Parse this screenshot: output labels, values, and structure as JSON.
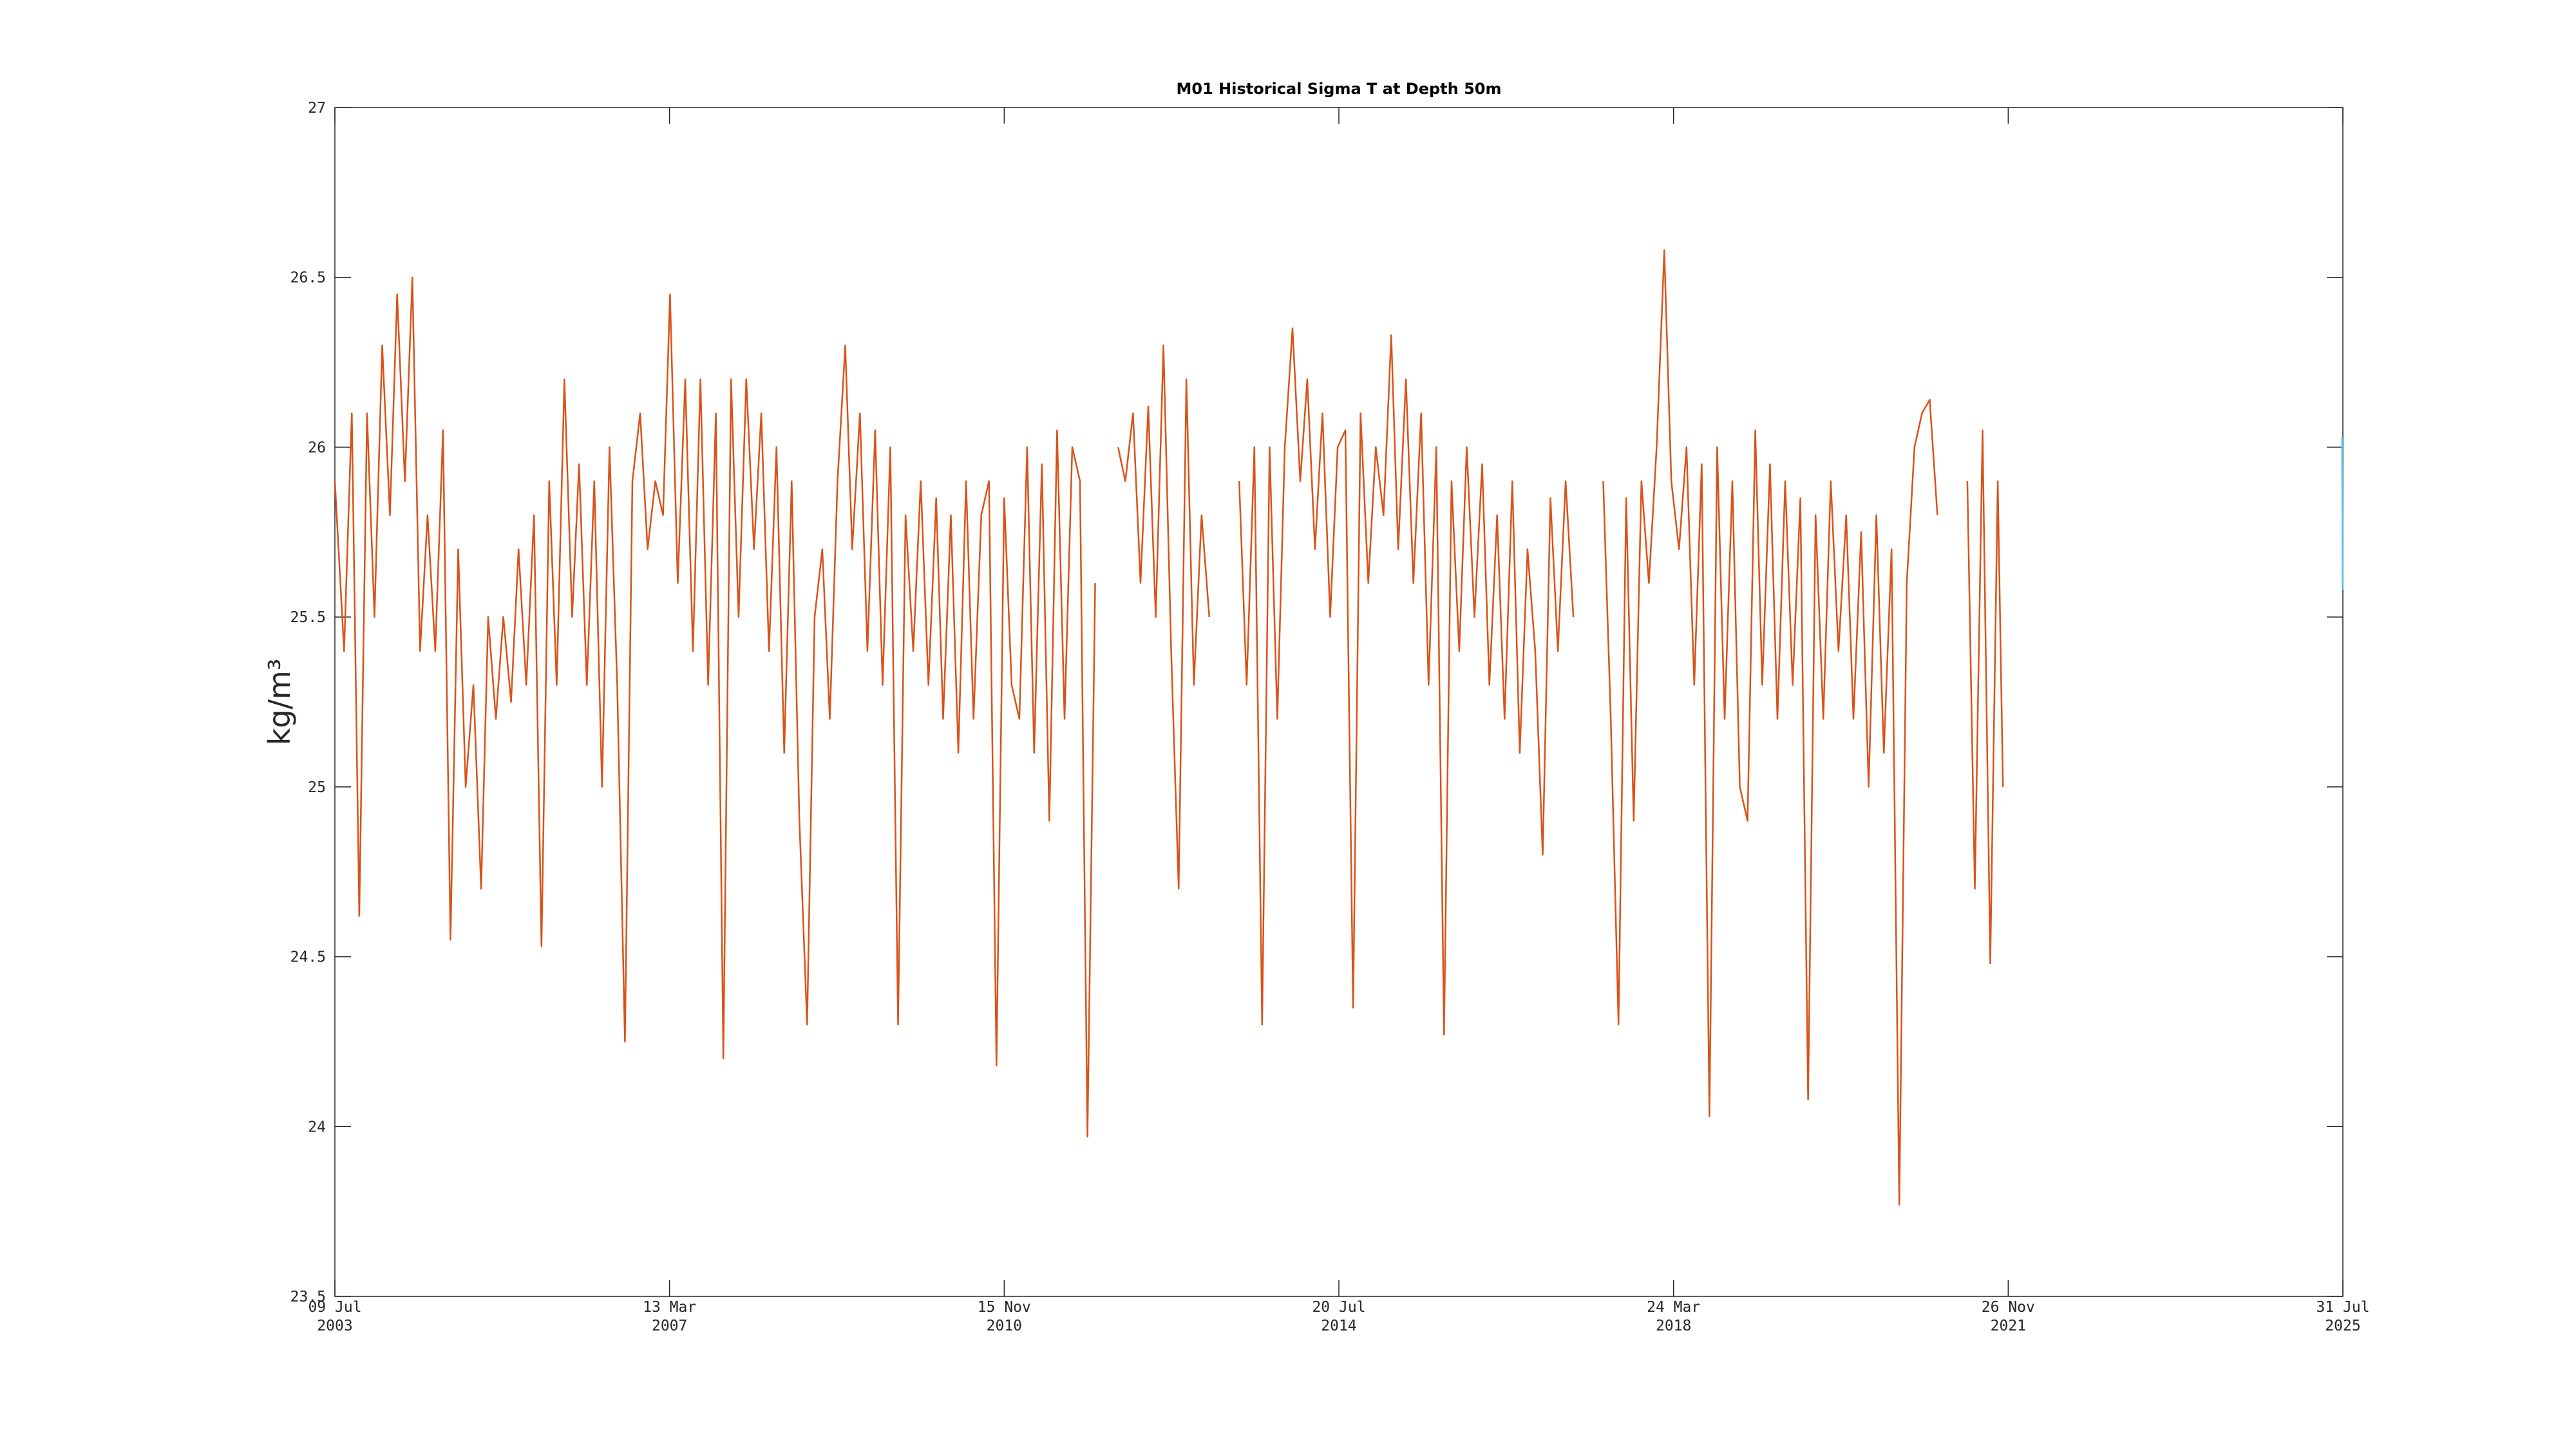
{
  "chart_data": {
    "type": "line",
    "title": "M01 Historical Sigma T at Depth 50m",
    "y_label": "kg/m³",
    "xlim": [
      "2003-07-09",
      "2025-07-31"
    ],
    "xticks": [
      {
        "value": "2003-07-09",
        "label": [
          "09 Jul",
          "2003"
        ]
      },
      {
        "value": "2007-03-13",
        "label": [
          "13 Mar",
          "2007"
        ]
      },
      {
        "value": "2010-11-15",
        "label": [
          "15 Nov",
          "2010"
        ]
      },
      {
        "value": "2014-07-20",
        "label": [
          "20 Jul",
          "2014"
        ]
      },
      {
        "value": "2018-03-24",
        "label": [
          "24 Mar",
          "2018"
        ]
      },
      {
        "value": "2021-11-26",
        "label": [
          "26 Nov",
          "2021"
        ]
      },
      {
        "value": "2025-07-31",
        "label": [
          "31 Jul",
          "2025"
        ]
      }
    ],
    "ylim": [
      23.5,
      27
    ],
    "yticks": [
      23.5,
      24,
      24.5,
      25,
      25.5,
      26,
      26.5,
      27
    ],
    "series": [
      {
        "color": "#d95319",
        "x": [
          "2003-07-09",
          "2003-08-15",
          "2003-09-15",
          "2003-10-15",
          "2003-11-15",
          "2003-12-15",
          "2004-01-15",
          "2004-02-15",
          "2004-03-15",
          "2004-04-15",
          "2004-05-15",
          "2004-06-15",
          "2004-07-15",
          "2004-08-15",
          "2004-09-15",
          "2004-10-15",
          "2004-11-15",
          "2004-12-15",
          "2005-01-15",
          "2005-02-15",
          "2005-03-15",
          "2005-04-15",
          "2005-05-15",
          "2005-06-15",
          "2005-07-15",
          "2005-08-15",
          "2005-09-15",
          "2005-10-15",
          "2005-11-15",
          "2005-12-15",
          "2006-01-15",
          "2006-02-15",
          "2006-03-15",
          "2006-04-15",
          "2006-05-15",
          "2006-06-15",
          "2006-07-15",
          "2006-08-15",
          "2006-09-15",
          "2006-10-15",
          "2006-11-15",
          "2006-12-15",
          "2007-01-15",
          "2007-02-15",
          "2007-03-15",
          "2007-04-15",
          "2007-05-15",
          "2007-06-15",
          "2007-07-15",
          "2007-08-15",
          "2007-09-15",
          "2007-10-15",
          "2007-11-15",
          "2007-12-15",
          "2008-01-15",
          "2008-02-15",
          "2008-03-15",
          "2008-04-15",
          "2008-05-15",
          "2008-06-15",
          "2008-07-15",
          "2008-08-15",
          "2008-09-15",
          "2008-10-15",
          "2008-11-15",
          "2008-12-15",
          "2009-01-15",
          "2009-02-15",
          "2009-03-15",
          "2009-04-15",
          "2009-05-15",
          "2009-06-15",
          "2009-07-15",
          "2009-08-15",
          "2009-09-15",
          "2009-10-15",
          "2009-11-15",
          "2009-12-15",
          "2010-01-15",
          "2010-02-15",
          "2010-03-15",
          "2010-04-15",
          "2010-05-15",
          "2010-06-15",
          "2010-07-15",
          "2010-08-15",
          "2010-09-15",
          "2010-10-15",
          "2010-11-15",
          "2010-12-15",
          "2011-01-15",
          "2011-02-15",
          "2011-03-15",
          "2011-04-15",
          "2011-05-15",
          "2011-06-15",
          "2011-07-15",
          "2011-08-15",
          "2011-09-15",
          "2011-10-15",
          "2011-11-15",
          "2011-12-15",
          "2012-01-15",
          "2012-02-15",
          "2012-03-15",
          "2012-04-15",
          "2012-05-15",
          "2012-06-15",
          "2012-07-15",
          "2012-08-15",
          "2012-09-15",
          "2012-10-15",
          "2012-11-15",
          "2012-12-15",
          "2013-01-15",
          "2013-02-15",
          "2013-03-15",
          "2013-04-15",
          "2013-05-15",
          "2013-06-15",
          "2013-07-15",
          "2013-08-15",
          "2013-09-15",
          "2013-10-15",
          "2013-11-15",
          "2013-12-15",
          "2014-01-15",
          "2014-02-15",
          "2014-03-15",
          "2014-04-15",
          "2014-05-15",
          "2014-06-15",
          "2014-07-15",
          "2014-08-15",
          "2014-09-15",
          "2014-10-15",
          "2014-11-15",
          "2014-12-15",
          "2015-01-15",
          "2015-02-15",
          "2015-03-15",
          "2015-04-15",
          "2015-05-15",
          "2015-06-15",
          "2015-07-15",
          "2015-08-15",
          "2015-09-15",
          "2015-10-15",
          "2015-11-15",
          "2015-12-15",
          "2016-01-15",
          "2016-02-15",
          "2016-03-15",
          "2016-04-15",
          "2016-05-15",
          "2016-06-15",
          "2016-07-15",
          "2016-08-15",
          "2016-09-15",
          "2016-10-15",
          "2016-11-15",
          "2016-12-15",
          "2017-01-15",
          "2017-02-15",
          "2017-03-15",
          "2017-04-15",
          "2017-05-15",
          "2017-06-15",
          "2017-07-15",
          "2017-08-15",
          "2017-09-15",
          "2017-10-15",
          "2017-11-15",
          "2017-12-15",
          "2018-01-15",
          "2018-02-15",
          "2018-03-15",
          "2018-04-15",
          "2018-05-15",
          "2018-06-15",
          "2018-07-15",
          "2018-08-15",
          "2018-09-15",
          "2018-10-15",
          "2018-11-15",
          "2018-12-15",
          "2019-01-15",
          "2019-02-15",
          "2019-03-15",
          "2019-04-15",
          "2019-05-15",
          "2019-06-15",
          "2019-07-15",
          "2019-08-15",
          "2019-09-15",
          "2019-10-15",
          "2019-11-15",
          "2019-12-15",
          "2020-01-15",
          "2020-02-15",
          "2020-03-15",
          "2020-04-15",
          "2020-05-15",
          "2020-06-15",
          "2020-07-15",
          "2020-08-15",
          "2020-09-15",
          "2020-10-15",
          "2020-11-15",
          "2020-12-15",
          "2021-01-15",
          "2021-02-15",
          "2021-03-15",
          "2021-04-15",
          "2021-05-15",
          "2021-06-15",
          "2021-07-15",
          "2021-08-15",
          "2021-09-15",
          "2021-10-15",
          "2021-11-05"
        ],
        "values": [
          25.9,
          25.4,
          26.1,
          24.62,
          26.1,
          25.5,
          26.3,
          25.8,
          26.45,
          25.9,
          26.5,
          25.4,
          25.8,
          25.4,
          26.05,
          24.55,
          25.7,
          25.0,
          25.3,
          24.7,
          25.5,
          25.2,
          25.5,
          25.25,
          25.7,
          25.3,
          25.8,
          24.53,
          25.9,
          25.3,
          26.2,
          25.5,
          25.95,
          25.3,
          25.9,
          25.0,
          26.0,
          25.3,
          24.25,
          25.9,
          26.1,
          25.7,
          25.9,
          25.8,
          26.45,
          25.6,
          26.2,
          25.4,
          26.2,
          25.3,
          26.1,
          24.2,
          26.2,
          25.5,
          26.2,
          25.7,
          26.1,
          25.4,
          26.0,
          25.1,
          25.9,
          24.9,
          24.3,
          25.5,
          25.7,
          25.2,
          25.9,
          26.3,
          25.7,
          26.1,
          25.4,
          26.05,
          25.3,
          26.0,
          24.3,
          25.8,
          25.4,
          25.9,
          25.3,
          25.85,
          25.2,
          25.8,
          25.1,
          25.9,
          25.2,
          25.8,
          25.9,
          24.18,
          25.85,
          25.3,
          25.2,
          26.0,
          25.1,
          25.95,
          24.9,
          26.05,
          25.2,
          26.0,
          25.9,
          23.97,
          25.6,
          null,
          null,
          26.0,
          25.9,
          26.1,
          25.6,
          26.12,
          25.5,
          26.3,
          25.4,
          24.7,
          26.2,
          25.3,
          25.8,
          25.5,
          null,
          null,
          null,
          25.9,
          25.3,
          26.0,
          24.3,
          26.0,
          25.2,
          26.0,
          26.35,
          25.9,
          26.2,
          25.7,
          26.1,
          25.5,
          26.0,
          26.05,
          24.35,
          26.1,
          25.6,
          26.0,
          25.8,
          26.33,
          25.7,
          26.2,
          25.6,
          26.1,
          25.3,
          26.0,
          24.27,
          25.9,
          25.4,
          26.0,
          25.5,
          25.95,
          25.3,
          25.8,
          25.2,
          25.9,
          25.1,
          25.7,
          25.4,
          24.8,
          25.85,
          25.4,
          25.9,
          25.5,
          null,
          null,
          null,
          25.9,
          25.2,
          24.3,
          25.85,
          24.9,
          25.9,
          25.6,
          26.0,
          26.58,
          25.9,
          25.7,
          26.0,
          25.3,
          25.95,
          24.03,
          26.0,
          25.2,
          25.9,
          25.0,
          24.9,
          26.05,
          25.3,
          25.95,
          25.2,
          25.9,
          25.3,
          25.85,
          24.08,
          25.8,
          25.2,
          25.9,
          25.4,
          25.8,
          25.2,
          25.75,
          25.0,
          25.8,
          25.1,
          25.7,
          23.77,
          25.6,
          26.0,
          26.1,
          26.14,
          25.8,
          null,
          null,
          null,
          25.9,
          24.7,
          26.05,
          24.48,
          25.9,
          25.0
        ]
      },
      {
        "color": "#4dbeee",
        "x": [
          "2025-07-28",
          "2025-07-30"
        ],
        "values": [
          26.03,
          25.58
        ]
      }
    ]
  }
}
